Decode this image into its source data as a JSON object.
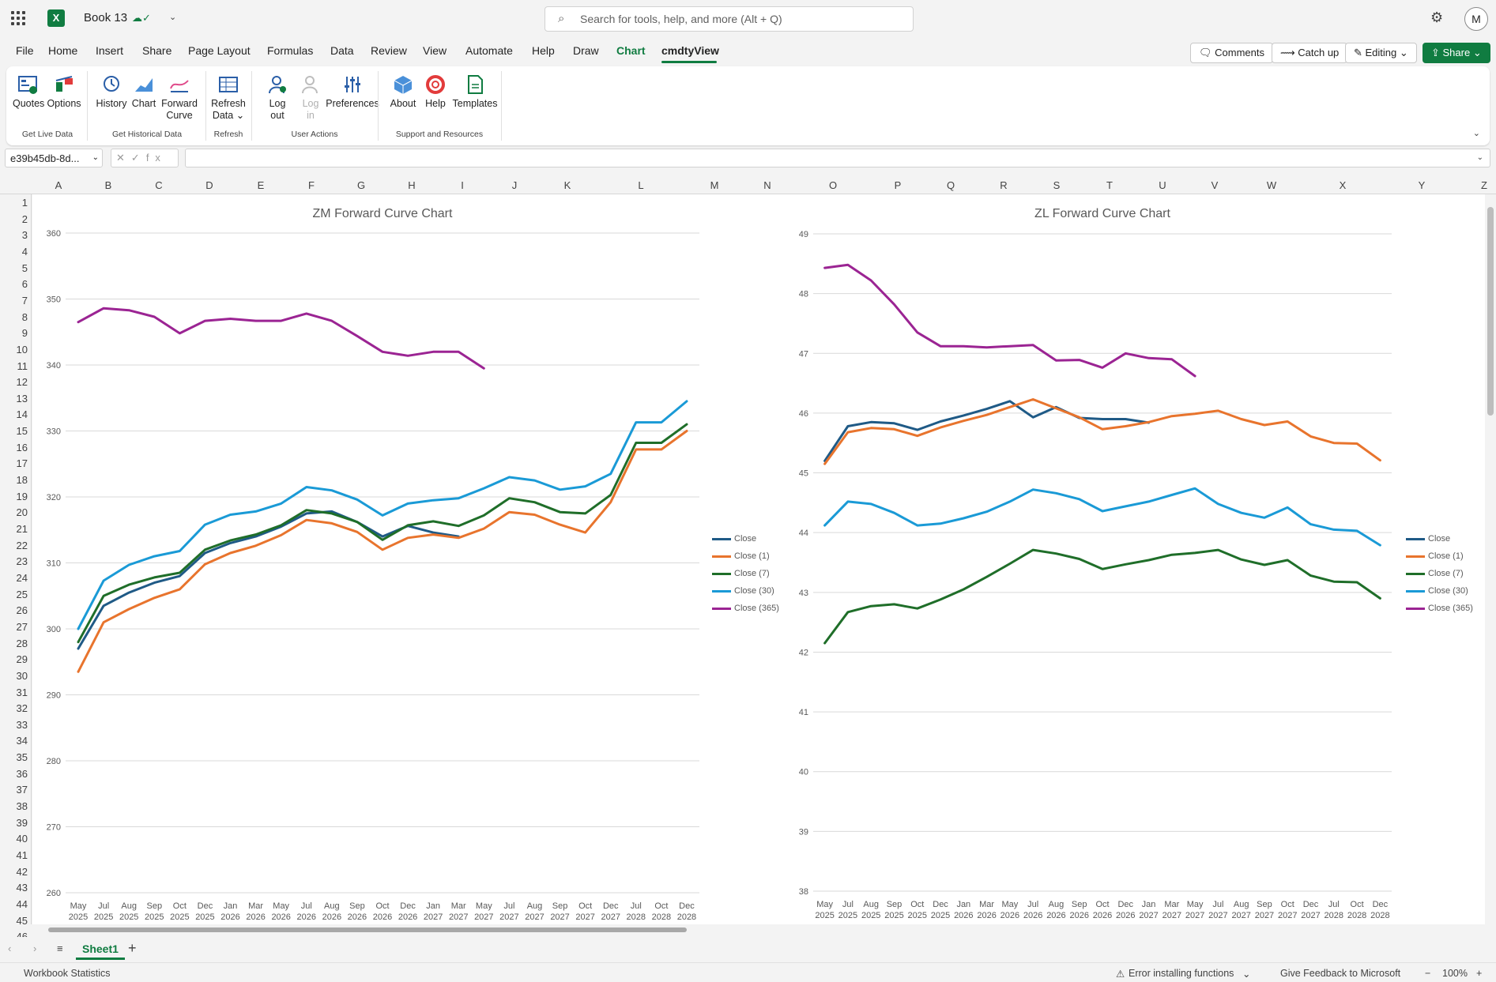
{
  "titlebar": {
    "workbook_name": "Book 13",
    "search_placeholder": "Search for tools, help, and more (Alt + Q)",
    "avatar_initial": "M"
  },
  "menu": {
    "tabs": [
      "File",
      "Home",
      "Insert",
      "Share",
      "Page Layout",
      "Formulas",
      "Data",
      "Review",
      "View",
      "Automate",
      "Help",
      "Draw",
      "Chart",
      "cmdtyView"
    ],
    "active_tab": "cmdtyView",
    "comments_label": "Comments",
    "catchup_label": "Catch up",
    "editing_label": "Editing",
    "share_label": "Share"
  },
  "ribbon": {
    "buttons": {
      "quotes": "Quotes",
      "options": "Options",
      "history": "History",
      "chart": "Chart",
      "forward": "Forward",
      "curve": "Curve",
      "refresh": "Refresh",
      "data": "Data",
      "logout1": "Log",
      "logout2": "out",
      "login1": "Log",
      "login2": "in",
      "preferences": "Preferences",
      "about": "About",
      "help": "Help",
      "templates": "Templates"
    },
    "groups": {
      "live": "Get Live Data",
      "historical": "Get Historical Data",
      "refresh": "Refresh",
      "user": "User Actions",
      "support": "Support and Resources"
    }
  },
  "formula_bar": {
    "name_box": "e39b45db-8d...",
    "fx": "fx",
    "value": ""
  },
  "columns": [
    "A",
    "B",
    "C",
    "D",
    "E",
    "F",
    "G",
    "H",
    "I",
    "J",
    "K",
    "L",
    "M",
    "N",
    "O",
    "P",
    "Q",
    "R",
    "S",
    "T",
    "U",
    "V",
    "W",
    "X",
    "Y",
    "Z"
  ],
  "rows": [
    "1",
    "2",
    "3",
    "4",
    "5",
    "6",
    "7",
    "8",
    "9",
    "10",
    "11",
    "12",
    "13",
    "14",
    "15",
    "16",
    "17",
    "18",
    "19",
    "20",
    "21",
    "22",
    "23",
    "24",
    "25",
    "26",
    "27",
    "28",
    "29",
    "30",
    "31",
    "32",
    "33",
    "34",
    "35",
    "36",
    "37",
    "38",
    "39",
    "40",
    "41",
    "42",
    "43",
    "44",
    "45",
    "46"
  ],
  "sheet": {
    "name": "Sheet1"
  },
  "status": {
    "left": "Workbook Statistics",
    "error": "Error installing functions",
    "feedback": "Give Feedback to Microsoft",
    "zoom": "100%"
  },
  "colors": {
    "accent": "#107c41",
    "close": "#1f5a86",
    "close1": "#e8742d",
    "close7": "#1f6e29",
    "close30": "#1a9ad6",
    "close365": "#9b2493"
  },
  "chart_data": [
    {
      "type": "line",
      "title": "ZM Forward Curve Chart",
      "ylim": [
        260,
        360
      ],
      "yticks": [
        260,
        270,
        280,
        290,
        300,
        310,
        320,
        330,
        340,
        350,
        360
      ],
      "categories": [
        "May 2025",
        "Jul 2025",
        "Aug 2025",
        "Sep 2025",
        "Oct 2025",
        "Dec 2025",
        "Jan 2026",
        "Mar 2026",
        "May 2026",
        "Jul 2026",
        "Aug 2026",
        "Sep 2026",
        "Oct 2026",
        "Dec 2026",
        "Jan 2027",
        "Mar 2027",
        "May 2027",
        "Jul 2027",
        "Aug 2027",
        "Sep 2027",
        "Oct 2027",
        "Dec 2027",
        "Jul 2028",
        "Oct 2028",
        "Dec 2028"
      ],
      "legend_position": "right",
      "grid": true,
      "series": [
        {
          "name": "Close",
          "values": [
            297,
            303.5,
            305.5,
            307,
            308,
            311.5,
            313,
            314,
            315.5,
            317.5,
            317.8,
            316.2,
            314,
            315.6,
            314.6,
            314,
            null,
            null,
            null,
            null,
            null,
            null,
            null,
            null,
            null
          ]
        },
        {
          "name": "Close (1)",
          "values": [
            293.5,
            301,
            303,
            304.7,
            306,
            309.8,
            311.5,
            312.6,
            314.2,
            316.5,
            316,
            314.7,
            312,
            313.8,
            314.3,
            313.8,
            315.2,
            317.7,
            317.3,
            315.8,
            314.6,
            319.2,
            327.2,
            327.2,
            330
          ]
        },
        {
          "name": "Close (7)",
          "values": [
            298,
            305,
            306.7,
            307.8,
            308.5,
            312,
            313.4,
            314.3,
            315.7,
            318,
            317.5,
            316.2,
            313.5,
            315.7,
            316.3,
            315.6,
            317.2,
            319.8,
            319.2,
            317.7,
            317.5,
            320.3,
            328.2,
            328.2,
            331
          ]
        },
        {
          "name": "Close (30)",
          "values": [
            300,
            307.3,
            309.7,
            311,
            311.8,
            315.8,
            317.3,
            317.8,
            319,
            321.5,
            321,
            319.6,
            317.2,
            319,
            319.5,
            319.8,
            321.3,
            323,
            322.5,
            321.1,
            321.6,
            323.5,
            331.3,
            331.3,
            334.5
          ]
        },
        {
          "name": "Close (365)",
          "values": [
            346.5,
            348.6,
            348.3,
            347.3,
            344.8,
            346.7,
            347,
            346.7,
            346.7,
            347.8,
            346.7,
            344.4,
            342,
            341.4,
            342,
            342,
            339.5,
            null,
            null,
            null,
            null,
            null,
            null,
            null,
            null
          ]
        }
      ]
    },
    {
      "type": "line",
      "title": "ZL Forward Curve Chart",
      "ylim": [
        38,
        49
      ],
      "yticks": [
        38,
        39,
        40,
        41,
        42,
        43,
        44,
        45,
        46,
        47,
        48,
        49
      ],
      "categories": [
        "May 2025",
        "Jul 2025",
        "Aug 2025",
        "Sep 2025",
        "Oct 2025",
        "Dec 2025",
        "Jan 2026",
        "Mar 2026",
        "May 2026",
        "Jul 2026",
        "Aug 2026",
        "Sep 2026",
        "Oct 2026",
        "Dec 2026",
        "Jan 2027",
        "Mar 2027",
        "May 2027",
        "Jul 2027",
        "Aug 2027",
        "Sep 2027",
        "Oct 2027",
        "Dec 2027",
        "Jul 2028",
        "Oct 2028",
        "Dec 2028"
      ],
      "legend_position": "right",
      "grid": true,
      "series": [
        {
          "name": "Close",
          "values": [
            45.2,
            45.78,
            45.85,
            45.83,
            45.72,
            45.86,
            45.96,
            46.07,
            46.2,
            45.93,
            46.1,
            45.92,
            45.9,
            45.9,
            45.84,
            null,
            null,
            null,
            null,
            null,
            null,
            null,
            null,
            null,
            null
          ]
        },
        {
          "name": "Close (1)",
          "values": [
            45.15,
            45.68,
            45.75,
            45.73,
            45.62,
            45.76,
            45.87,
            45.97,
            46.1,
            46.23,
            46.08,
            45.93,
            45.73,
            45.78,
            45.85,
            45.95,
            45.99,
            46.04,
            45.9,
            45.8,
            45.86,
            45.61,
            45.5,
            45.49,
            45.21
          ]
        },
        {
          "name": "Close (7)",
          "values": [
            42.15,
            42.67,
            42.77,
            42.8,
            42.73,
            42.88,
            43.05,
            43.26,
            43.48,
            43.71,
            43.65,
            43.56,
            43.39,
            43.47,
            43.54,
            43.63,
            43.66,
            43.71,
            43.55,
            43.46,
            43.54,
            43.28,
            43.18,
            43.17,
            42.9
          ]
        },
        {
          "name": "Close (30)",
          "values": [
            44.12,
            44.52,
            44.48,
            44.33,
            44.12,
            44.15,
            44.24,
            44.35,
            44.52,
            44.72,
            44.66,
            44.56,
            44.36,
            44.44,
            44.52,
            44.63,
            44.74,
            44.48,
            44.33,
            44.25,
            44.42,
            44.14,
            44.05,
            44.03,
            43.79
          ]
        },
        {
          "name": "Close (365)",
          "values": [
            48.43,
            48.48,
            48.22,
            47.82,
            47.35,
            47.12,
            47.12,
            47.1,
            47.12,
            47.14,
            46.88,
            46.89,
            46.76,
            47,
            46.92,
            46.9,
            46.62,
            null,
            null,
            null,
            null,
            null,
            null,
            null,
            null
          ]
        }
      ]
    }
  ]
}
